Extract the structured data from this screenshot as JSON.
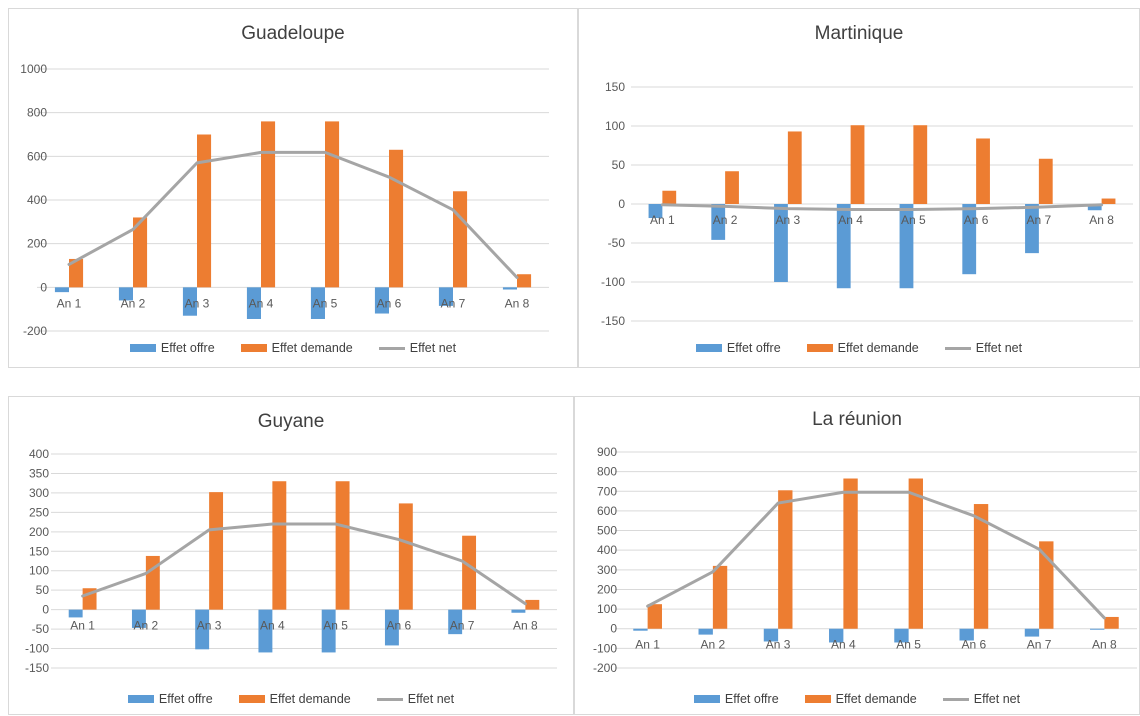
{
  "colors": {
    "supply": "#5b9bd5",
    "demand": "#ed7d31",
    "net": "#a5a5a5",
    "grid": "#d9d9d9"
  },
  "legend": {
    "supply": "Effet offre",
    "demand": "Effet demande",
    "net": "Effet net"
  },
  "chart_data": [
    {
      "type": "bar",
      "title": "Guadeloupe",
      "categories": [
        "An 1",
        "An 2",
        "An 3",
        "An 4",
        "An 5",
        "An 6",
        "An 7",
        "An 8"
      ],
      "ylim": [
        -200,
        1000
      ],
      "yticks": [
        -200,
        0,
        200,
        400,
        600,
        800,
        1000
      ],
      "grid": true,
      "legend_position": "bottom",
      "series": [
        {
          "name": "Effet offre",
          "kind": "bar",
          "values": [
            -22,
            -60,
            -130,
            -145,
            -145,
            -120,
            -85,
            -10
          ]
        },
        {
          "name": "Effet demande",
          "kind": "bar",
          "values": [
            130,
            320,
            700,
            760,
            760,
            630,
            440,
            60
          ]
        },
        {
          "name": "Effet net",
          "kind": "line",
          "values": [
            105,
            265,
            570,
            618,
            618,
            505,
            355,
            45
          ]
        }
      ]
    },
    {
      "type": "bar",
      "title": "Martinique",
      "categories": [
        "An 1",
        "An 2",
        "An 3",
        "An 4",
        "An 5",
        "An 6",
        "An 7",
        "An 8"
      ],
      "ylim": [
        -150,
        150
      ],
      "yticks": [
        -150,
        -100,
        -50,
        0,
        50,
        100,
        150
      ],
      "grid": true,
      "legend_position": "bottom",
      "series": [
        {
          "name": "Effet offre",
          "kind": "bar",
          "values": [
            -18,
            -46,
            -100,
            -108,
            -108,
            -90,
            -63,
            -8
          ]
        },
        {
          "name": "Effet demande",
          "kind": "bar",
          "values": [
            17,
            42,
            93,
            101,
            101,
            84,
            58,
            7
          ]
        },
        {
          "name": "Effet net",
          "kind": "line",
          "values": [
            -1,
            -3,
            -6,
            -7,
            -7,
            -6,
            -4,
            -1
          ]
        }
      ]
    },
    {
      "type": "bar",
      "title": "Guyane",
      "categories": [
        "An 1",
        "An 2",
        "An 3",
        "An 4",
        "An 5",
        "An 6",
        "An 7",
        "An 8"
      ],
      "ylim": [
        -150,
        400
      ],
      "yticks": [
        -150,
        -100,
        -50,
        0,
        50,
        100,
        150,
        200,
        250,
        300,
        350,
        400
      ],
      "grid": true,
      "legend_position": "bottom",
      "series": [
        {
          "name": "Effet offre",
          "kind": "bar",
          "values": [
            -20,
            -47,
            -102,
            -110,
            -110,
            -92,
            -63,
            -8
          ]
        },
        {
          "name": "Effet demande",
          "kind": "bar",
          "values": [
            55,
            138,
            302,
            330,
            330,
            273,
            190,
            25
          ]
        },
        {
          "name": "Effet net",
          "kind": "line",
          "values": [
            35,
            93,
            205,
            220,
            220,
            180,
            125,
            15
          ]
        }
      ]
    },
    {
      "type": "bar",
      "title": "La réunion",
      "categories": [
        "An 1",
        "An 2",
        "An 3",
        "An 4",
        "An 5",
        "An 6",
        "An 7",
        "An 8"
      ],
      "ylim": [
        -200,
        900
      ],
      "yticks": [
        -200,
        -100,
        0,
        100,
        200,
        300,
        400,
        500,
        600,
        700,
        800,
        900
      ],
      "grid": true,
      "legend_position": "bottom",
      "series": [
        {
          "name": "Effet offre",
          "kind": "bar",
          "values": [
            -10,
            -30,
            -65,
            -70,
            -70,
            -60,
            -40,
            -5
          ]
        },
        {
          "name": "Effet demande",
          "kind": "bar",
          "values": [
            125,
            320,
            705,
            765,
            765,
            635,
            445,
            60
          ]
        },
        {
          "name": "Effet net",
          "kind": "line",
          "values": [
            115,
            290,
            640,
            695,
            695,
            575,
            405,
            55
          ]
        }
      ]
    }
  ]
}
